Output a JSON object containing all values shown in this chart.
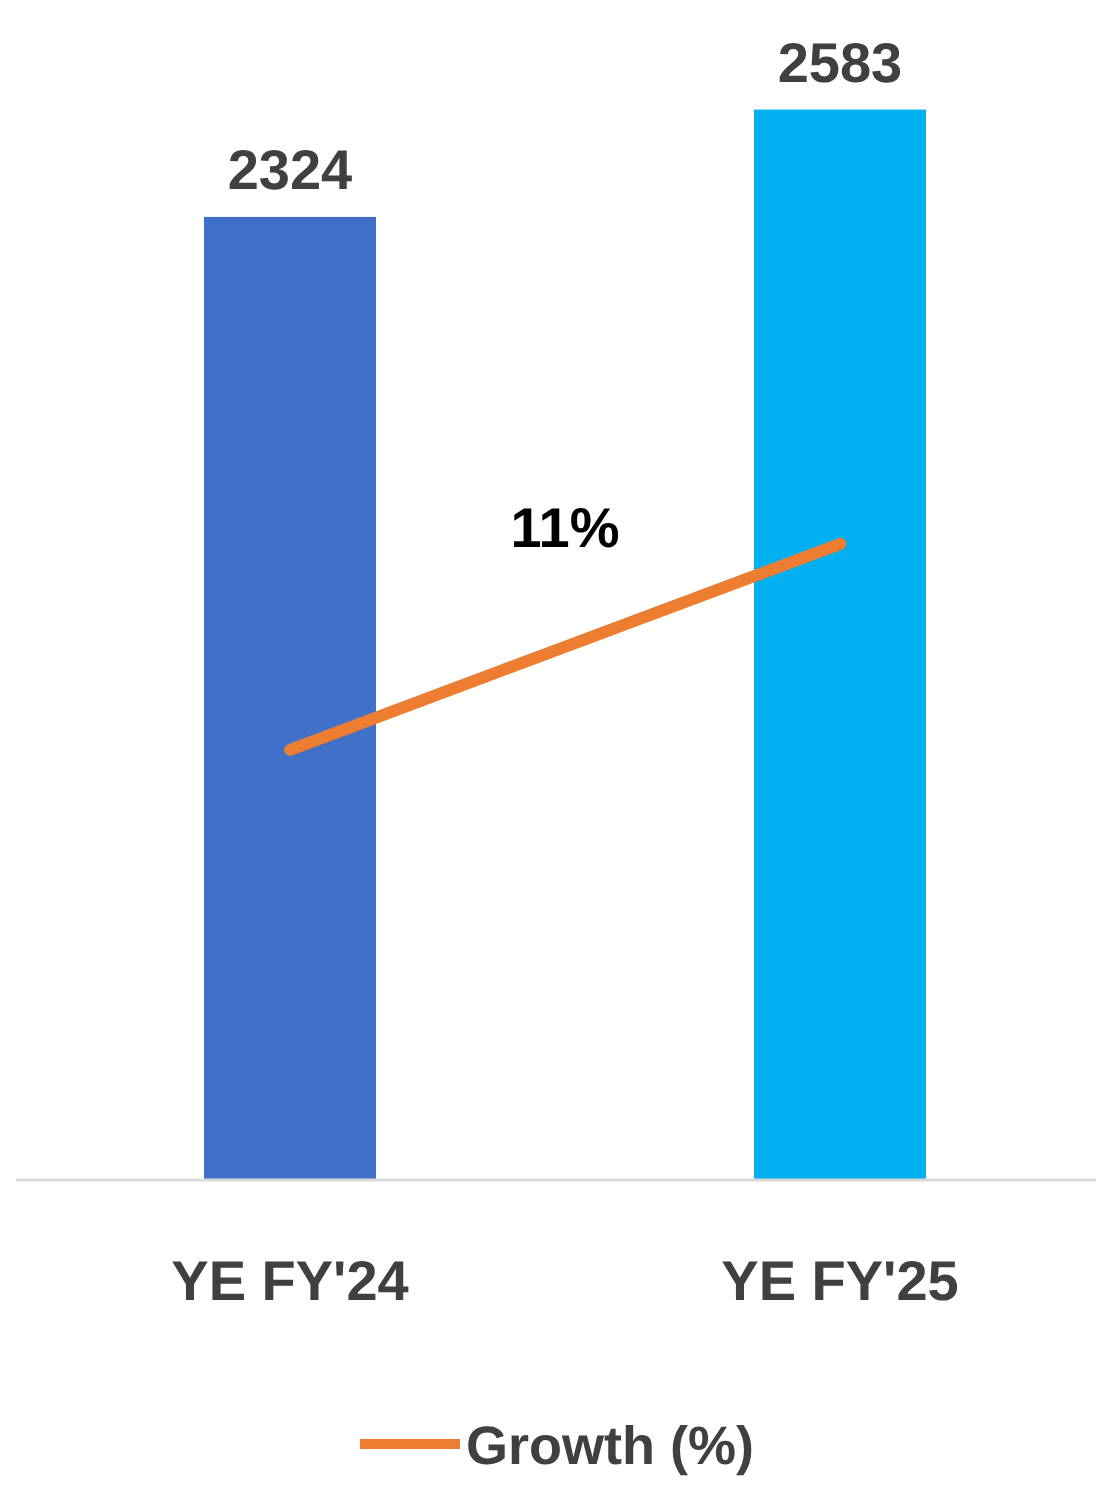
{
  "chart_data": {
    "type": "bar",
    "categories": [
      "YE FY'24",
      "YE FY'25"
    ],
    "series": [
      {
        "colors": [
          "#4170c8",
          "#00b0f0"
        ],
        "values": [
          2324,
          2583
        ],
        "value_labels": [
          "2324",
          "2583"
        ]
      },
      {
        "type": "line",
        "name": "Growth (%)",
        "color": "#ed7d31",
        "values": [
          1038,
          1535
        ]
      }
    ],
    "tick_labels": "x",
    "annotations": [
      "11%"
    ],
    "legend": "bottom"
  }
}
